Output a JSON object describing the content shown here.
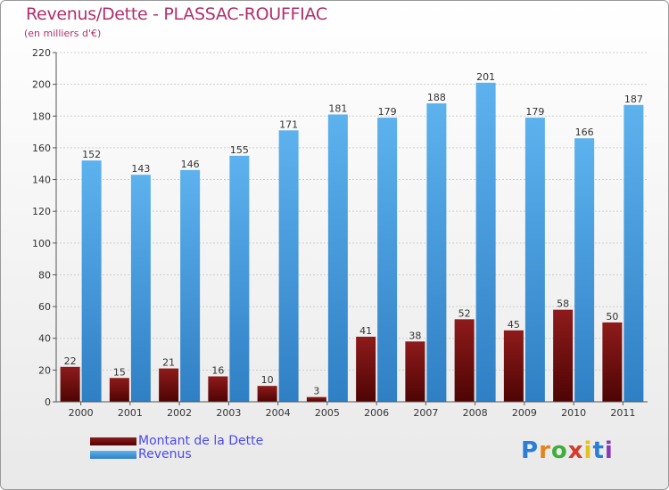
{
  "chart_data": {
    "type": "bar",
    "title": "Revenus/Dette - PLASSAC-ROUFFIAC",
    "subtitle": "(en milliers d'€)",
    "categories": [
      "2000",
      "2001",
      "2002",
      "2003",
      "2004",
      "2005",
      "2006",
      "2007",
      "2008",
      "2009",
      "2010",
      "2011"
    ],
    "series": [
      {
        "name": "Montant de la Dette",
        "color": "#7a0c0c",
        "values": [
          22,
          15,
          21,
          16,
          10,
          3,
          41,
          38,
          52,
          45,
          58,
          50
        ]
      },
      {
        "name": "Revenus",
        "color": "#4aa3e6",
        "values": [
          152,
          143,
          146,
          155,
          171,
          181,
          179,
          188,
          201,
          179,
          166,
          187
        ]
      }
    ],
    "ylim": [
      0,
      220
    ],
    "yticks": [
      0,
      20,
      40,
      60,
      80,
      100,
      120,
      140,
      160,
      180,
      200,
      220
    ],
    "grid": true,
    "xlabel": "",
    "ylabel": "",
    "legend_position": "bottom-left"
  },
  "logo": {
    "letters": [
      "P",
      "r",
      "o",
      "x",
      "i",
      "t",
      "i"
    ],
    "colors": [
      "#2a7fd4",
      "#e5821b",
      "#3fae3a",
      "#d63a2a",
      "#e5c21b",
      "#2a7fd4",
      "#8a3ab9"
    ]
  }
}
